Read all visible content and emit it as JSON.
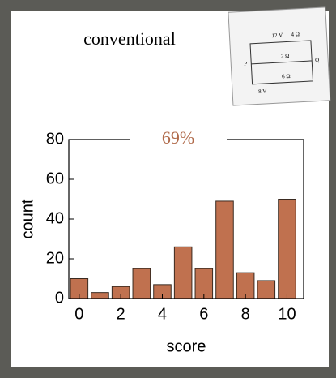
{
  "chart_data": {
    "type": "bar",
    "title": "conventional",
    "annotation": "69%",
    "x_label": "score",
    "y_label": "count",
    "x": [
      0,
      1,
      2,
      3,
      4,
      5,
      6,
      7,
      8,
      9,
      10
    ],
    "values": [
      10,
      3,
      6,
      15,
      7,
      26,
      15,
      49,
      13,
      9,
      50
    ],
    "color": "#c0714f",
    "xlim": [
      -0.5,
      10.8
    ],
    "xticks": [
      0,
      2,
      4,
      6,
      8,
      10
    ],
    "ylim": [
      0,
      80
    ],
    "yticks": [
      0,
      20,
      40,
      60,
      80
    ]
  },
  "circuit_labels": [
    "12 V",
    "4 Ω",
    "2 Ω",
    "6 Ω",
    "8 V",
    "P",
    "Q"
  ]
}
